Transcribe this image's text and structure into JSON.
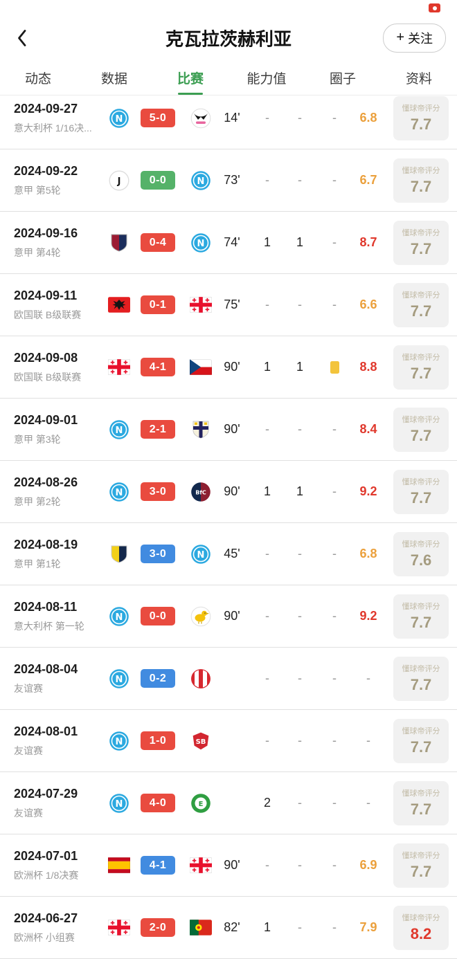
{
  "colors": {
    "win_badge": "#e94b3f",
    "draw_badge": "#55b269",
    "loss_badge": "#418be0",
    "rating_mid": "#eba03c",
    "rating_high": "#e0382c",
    "tab_active": "#3c9e52",
    "dqd_value": "#a59c80"
  },
  "header": {
    "title": "克瓦拉茨赫利亚",
    "follow": {
      "icon": "+",
      "label": "关注"
    }
  },
  "tabs": [
    {
      "id": "dynamic",
      "label": "动态",
      "active": false
    },
    {
      "id": "data",
      "label": "数据",
      "active": false
    },
    {
      "id": "matches",
      "label": "比赛",
      "active": true
    },
    {
      "id": "ability",
      "label": "能力值",
      "active": false
    },
    {
      "id": "circle",
      "label": "圈子",
      "active": false
    },
    {
      "id": "profile",
      "label": "资料",
      "active": false
    }
  ],
  "dqd_label": "懂球帝评分",
  "matches": [
    {
      "date": "2024-09-27",
      "competition": "意大利杯 1/16决...",
      "home_team": "napoli",
      "away_team": "palermo",
      "score": "5-0",
      "result": "win",
      "minutes": "14'",
      "goals": "-",
      "assists": "-",
      "card": "-",
      "rating": "6.8",
      "rating_level": "mid",
      "dqd_rating": "7.7",
      "dqd_high": false
    },
    {
      "date": "2024-09-22",
      "competition": "意甲 第5轮",
      "home_team": "juventus",
      "away_team": "napoli",
      "score": "0-0",
      "result": "draw",
      "minutes": "73'",
      "goals": "-",
      "assists": "-",
      "card": "-",
      "rating": "6.7",
      "rating_level": "mid",
      "dqd_rating": "7.7",
      "dqd_high": false
    },
    {
      "date": "2024-09-16",
      "competition": "意甲 第4轮",
      "home_team": "cagliari",
      "away_team": "napoli",
      "score": "0-4",
      "result": "win",
      "minutes": "74'",
      "goals": "1",
      "assists": "1",
      "card": "-",
      "rating": "8.7",
      "rating_level": "high",
      "dqd_rating": "7.7",
      "dqd_high": false
    },
    {
      "date": "2024-09-11",
      "competition": "欧国联 B级联赛",
      "home_team": "albania",
      "away_team": "georgia",
      "score": "0-1",
      "result": "win",
      "minutes": "75'",
      "goals": "-",
      "assists": "-",
      "card": "-",
      "rating": "6.6",
      "rating_level": "mid",
      "dqd_rating": "7.7",
      "dqd_high": false
    },
    {
      "date": "2024-09-08",
      "competition": "欧国联 B级联赛",
      "home_team": "georgia",
      "away_team": "czech",
      "score": "4-1",
      "result": "win",
      "minutes": "90'",
      "goals": "1",
      "assists": "1",
      "card": "yellow",
      "rating": "8.8",
      "rating_level": "high",
      "dqd_rating": "7.7",
      "dqd_high": false
    },
    {
      "date": "2024-09-01",
      "competition": "意甲 第3轮",
      "home_team": "napoli",
      "away_team": "parma",
      "score": "2-1",
      "result": "win",
      "minutes": "90'",
      "goals": "-",
      "assists": "-",
      "card": "-",
      "rating": "8.4",
      "rating_level": "high",
      "dqd_rating": "7.7",
      "dqd_high": false
    },
    {
      "date": "2024-08-26",
      "competition": "意甲 第2轮",
      "home_team": "napoli",
      "away_team": "bologna",
      "score": "3-0",
      "result": "win",
      "minutes": "90'",
      "goals": "1",
      "assists": "1",
      "card": "-",
      "rating": "9.2",
      "rating_level": "high",
      "dqd_rating": "7.7",
      "dqd_high": false
    },
    {
      "date": "2024-08-19",
      "competition": "意甲 第1轮",
      "home_team": "verona",
      "away_team": "napoli",
      "score": "3-0",
      "result": "loss",
      "minutes": "45'",
      "goals": "-",
      "assists": "-",
      "card": "-",
      "rating": "6.8",
      "rating_level": "mid",
      "dqd_rating": "7.6",
      "dqd_high": false
    },
    {
      "date": "2024-08-11",
      "competition": "意大利杯 第一轮",
      "home_team": "napoli",
      "away_team": "modena",
      "score": "0-0",
      "result": "win",
      "minutes": "90'",
      "goals": "-",
      "assists": "-",
      "card": "-",
      "rating": "9.2",
      "rating_level": "high",
      "dqd_rating": "7.7",
      "dqd_high": false
    },
    {
      "date": "2024-08-04",
      "competition": "友谊赛",
      "home_team": "napoli",
      "away_team": "girona",
      "score": "0-2",
      "result": "loss",
      "minutes": "",
      "goals": "-",
      "assists": "-",
      "card": "-",
      "rating": "-",
      "rating_level": "",
      "dqd_rating": "7.7",
      "dqd_high": false
    },
    {
      "date": "2024-08-01",
      "competition": "友谊赛",
      "home_team": "napoli",
      "away_team": "brest",
      "score": "1-0",
      "result": "win",
      "minutes": "",
      "goals": "-",
      "assists": "-",
      "card": "-",
      "rating": "-",
      "rating_level": "",
      "dqd_rating": "7.7",
      "dqd_high": false
    },
    {
      "date": "2024-07-29",
      "competition": "友谊赛",
      "home_team": "napoli",
      "away_team": "egnatia",
      "score": "4-0",
      "result": "win",
      "minutes": "",
      "goals": "2",
      "assists": "-",
      "card": "-",
      "rating": "-",
      "rating_level": "",
      "dqd_rating": "7.7",
      "dqd_high": false
    },
    {
      "date": "2024-07-01",
      "competition": "欧洲杯 1/8决赛",
      "home_team": "spain",
      "away_team": "georgia",
      "score": "4-1",
      "result": "loss",
      "minutes": "90'",
      "goals": "-",
      "assists": "-",
      "card": "-",
      "rating": "6.9",
      "rating_level": "mid",
      "dqd_rating": "7.7",
      "dqd_high": false
    },
    {
      "date": "2024-06-27",
      "competition": "欧洲杯 小组赛",
      "home_team": "georgia",
      "away_team": "portugal",
      "score": "2-0",
      "result": "win",
      "minutes": "82'",
      "goals": "1",
      "assists": "-",
      "card": "-",
      "rating": "7.9",
      "rating_level": "mid",
      "dqd_rating": "8.2",
      "dqd_high": true
    }
  ],
  "team_logos": {
    "napoli": {
      "kind": "circle",
      "bg": "#2ba9e0",
      "fg": "#ffffff",
      "text": "N",
      "ring": "#ffffff"
    },
    "palermo": {
      "kind": "palermo",
      "bg": "#ffffff",
      "eagle": "#141414",
      "accent": "#e8659e"
    },
    "juventus": {
      "kind": "circle",
      "bg": "#ffffff",
      "fg": "#141414",
      "text": "J",
      "border": "#dddddd"
    },
    "cagliari": {
      "kind": "shield-halves",
      "left": "#9b1b33",
      "right": "#1b2d5c",
      "border": "#a9a9a9"
    },
    "albania": {
      "kind": "flag-emblem",
      "bg": "#e41e20",
      "emblem": "#141414"
    },
    "georgia": {
      "kind": "georgia-flag",
      "bg": "#ffffff",
      "cross": "#e8112d"
    },
    "czech": {
      "kind": "czech-flag",
      "top": "#ffffff",
      "bottom": "#d7141a",
      "triangle": "#11457e"
    },
    "parma": {
      "kind": "shield-cross",
      "bg": "#f6f1dd",
      "cross": "#23235f",
      "accent": "#f2c218"
    },
    "bologna": {
      "kind": "circle-halves",
      "left": "#12294d",
      "right": "#8d1f31",
      "fg": "#ffffff",
      "text": "BfC"
    },
    "verona": {
      "kind": "shield-halves",
      "left": "#f3d018",
      "right": "#14284b",
      "border": "#c9c9c9"
    },
    "modena": {
      "kind": "canary",
      "bg": "#ffffff",
      "bird": "#f4c20d",
      "border": "#e0e0e0"
    },
    "girona": {
      "kind": "circle-stripes",
      "stripes": [
        "#d7282f",
        "#ffffff",
        "#d7282f",
        "#ffffff",
        "#d7282f"
      ],
      "border": "#d7282f"
    },
    "brest": {
      "kind": "shield-text",
      "bg": "#d22630",
      "fg": "#ffffff",
      "text": "SB"
    },
    "egnatia": {
      "kind": "circle-ring",
      "bg": "#2f9e41",
      "inner": "#ffffff",
      "fg": "#2f9e41",
      "text": "E"
    },
    "spain": {
      "kind": "flag-stripes-h",
      "stripes": [
        [
          "#c60b1e",
          0.25
        ],
        [
          "#ffc400",
          0.5
        ],
        [
          "#c60b1e",
          0.25
        ]
      ]
    },
    "portugal": {
      "kind": "portugal-flag",
      "left": "#046a38",
      "right": "#da291c",
      "circle": "#ffe900"
    }
  }
}
